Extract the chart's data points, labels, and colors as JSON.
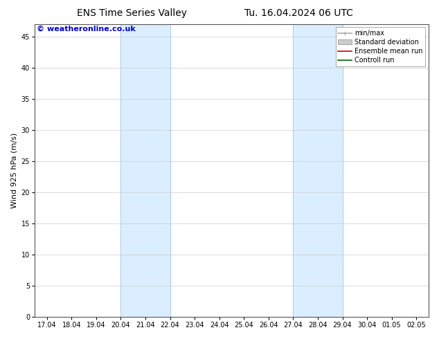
{
  "title_left": "ENS Time Series Valley",
  "title_right": "Tu. 16.04.2024 06 UTC",
  "ylabel": "Wind 925 hPa (m/s)",
  "watermark": "© weatheronline.co.uk",
  "watermark_color": "#0000cc",
  "background_color": "#ffffff",
  "plot_bg_color": "#ffffff",
  "yticks": [
    0,
    5,
    10,
    15,
    20,
    25,
    30,
    35,
    40,
    45
  ],
  "ymax": 47,
  "xtick_labels": [
    "17.04",
    "18.04",
    "19.04",
    "20.04",
    "21.04",
    "22.04",
    "23.04",
    "24.04",
    "25.04",
    "26.04",
    "27.04",
    "28.04",
    "29.04",
    "30.04",
    "01.05",
    "02.05"
  ],
  "shaded_regions": [
    {
      "xmin": 3,
      "xmax": 5,
      "color": "#daeeff"
    },
    {
      "xmin": 10,
      "xmax": 12,
      "color": "#daeeff"
    }
  ],
  "shade_line_color": "#b0ccee",
  "legend_items": [
    {
      "label": "min/max",
      "color": "#aaaaaa",
      "lw": 1.2,
      "style": "minmax"
    },
    {
      "label": "Standard deviation",
      "color": "#cccccc",
      "lw": 6,
      "style": "rect"
    },
    {
      "label": "Ensemble mean run",
      "color": "#cc0000",
      "lw": 1.2,
      "style": "line"
    },
    {
      "label": "Controll run",
      "color": "#006600",
      "lw": 1.2,
      "style": "line"
    }
  ],
  "title_fontsize": 10,
  "tick_fontsize": 7,
  "ylabel_fontsize": 8,
  "watermark_fontsize": 8,
  "legend_fontsize": 7
}
